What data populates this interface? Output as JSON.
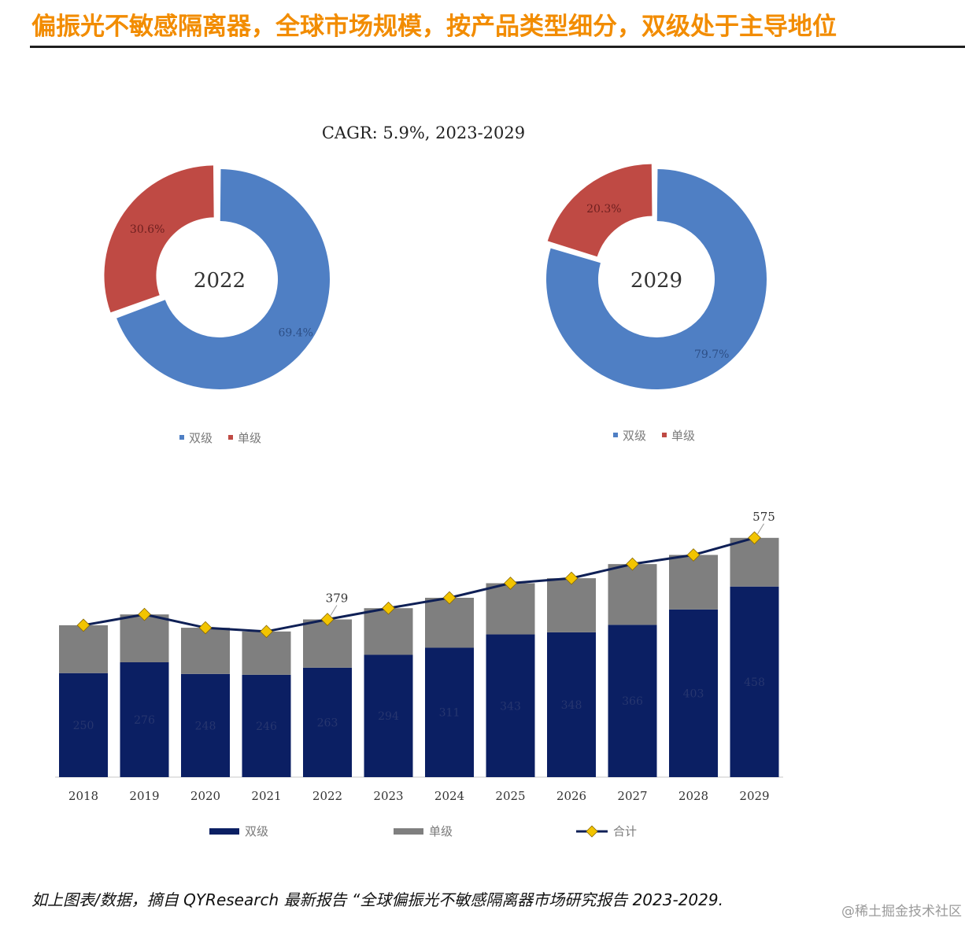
{
  "header": {
    "title": "偏振光不敏感隔离器，全球市场规模，按产品类型细分，双级处于主导地位"
  },
  "footer": {
    "source_text": "如上图表/数据，摘自 QYResearch 最新报告 “全球偏振光不敏感隔离器市场研究报告 2023-2029.",
    "watermark": "@稀土掘金技术社区"
  },
  "colors": {
    "title_orange": "#f28c00",
    "double_pie_blue": "#4f7fc4",
    "single_pie_red": "#bf4a44",
    "double_bar_navy": "#0b1f63",
    "single_bar_gray": "#7f7f7f",
    "total_line": "#0f2056",
    "total_marker": "#f2c400"
  },
  "chart_data": [
    {
      "type": "pie",
      "subtitle": "CAGR:   5.9%, 2023-2029",
      "center_label": "2022",
      "categories": [
        "双级",
        "单级"
      ],
      "values": [
        69.4,
        30.6
      ],
      "value_labels": [
        "69.4%",
        "30.6%"
      ],
      "legend": [
        "双级",
        "单级"
      ],
      "legend_position": "bottom"
    },
    {
      "type": "pie",
      "center_label": "2029",
      "categories": [
        "双级",
        "单级"
      ],
      "values": [
        79.7,
        20.3
      ],
      "value_labels": [
        "79.7%",
        "20.3%"
      ],
      "legend": [
        "双级",
        "单级"
      ],
      "legend_position": "bottom"
    },
    {
      "type": "bar",
      "stacked": true,
      "categories": [
        "2018",
        "2019",
        "2020",
        "2021",
        "2022",
        "2023",
        "2024",
        "2025",
        "2026",
        "2027",
        "2028",
        "2029"
      ],
      "series": [
        {
          "name": "双级",
          "values": [
            250,
            276,
            248,
            246,
            263,
            294,
            311,
            343,
            348,
            366,
            403,
            458
          ]
        },
        {
          "name": "单级",
          "values": [
            115,
            115,
            111,
            104,
            116,
            112,
            120,
            123,
            130,
            146,
            131,
            117
          ]
        },
        {
          "name": "合计",
          "type": "line",
          "values": [
            365,
            391,
            359,
            350,
            379,
            406,
            431,
            466,
            478,
            512,
            534,
            575
          ]
        }
      ],
      "data_labels": {
        "双级": [
          "250",
          "276",
          "248",
          "246",
          "263",
          "294",
          "311",
          "343",
          "348",
          "366",
          "403",
          "458"
        ],
        "合计": {
          "2022": "379",
          "2029": "575"
        }
      },
      "ylim": [
        0,
        620
      ],
      "grid": false,
      "legend": [
        "双级",
        "单级",
        "合计"
      ],
      "legend_position": "bottom"
    }
  ]
}
